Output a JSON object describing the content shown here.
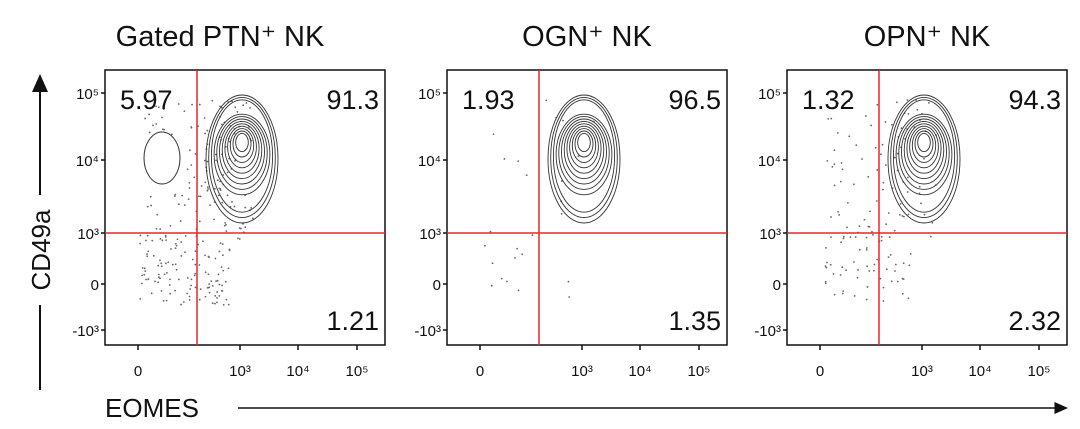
{
  "figure": {
    "y_axis_label": "CD49a",
    "x_axis_label": "EOMES",
    "y_ticks": [
      "10⁵",
      "10⁴",
      "10³",
      "0",
      "-10³"
    ],
    "x_ticks": [
      "0",
      "10³",
      "10⁴",
      "10⁵"
    ],
    "panels": [
      {
        "title": "Gated  PTN⁺ NK",
        "upper_left": 5.97,
        "upper_right": 91.3,
        "lower_right": 1.21
      },
      {
        "title": "OGN⁺ NK",
        "upper_left": 1.93,
        "upper_right": 96.5,
        "lower_right": 1.35
      },
      {
        "title": "OPN⁺ NK",
        "upper_left": 1.32,
        "upper_right": 94.3,
        "lower_right": 2.32
      }
    ]
  }
}
